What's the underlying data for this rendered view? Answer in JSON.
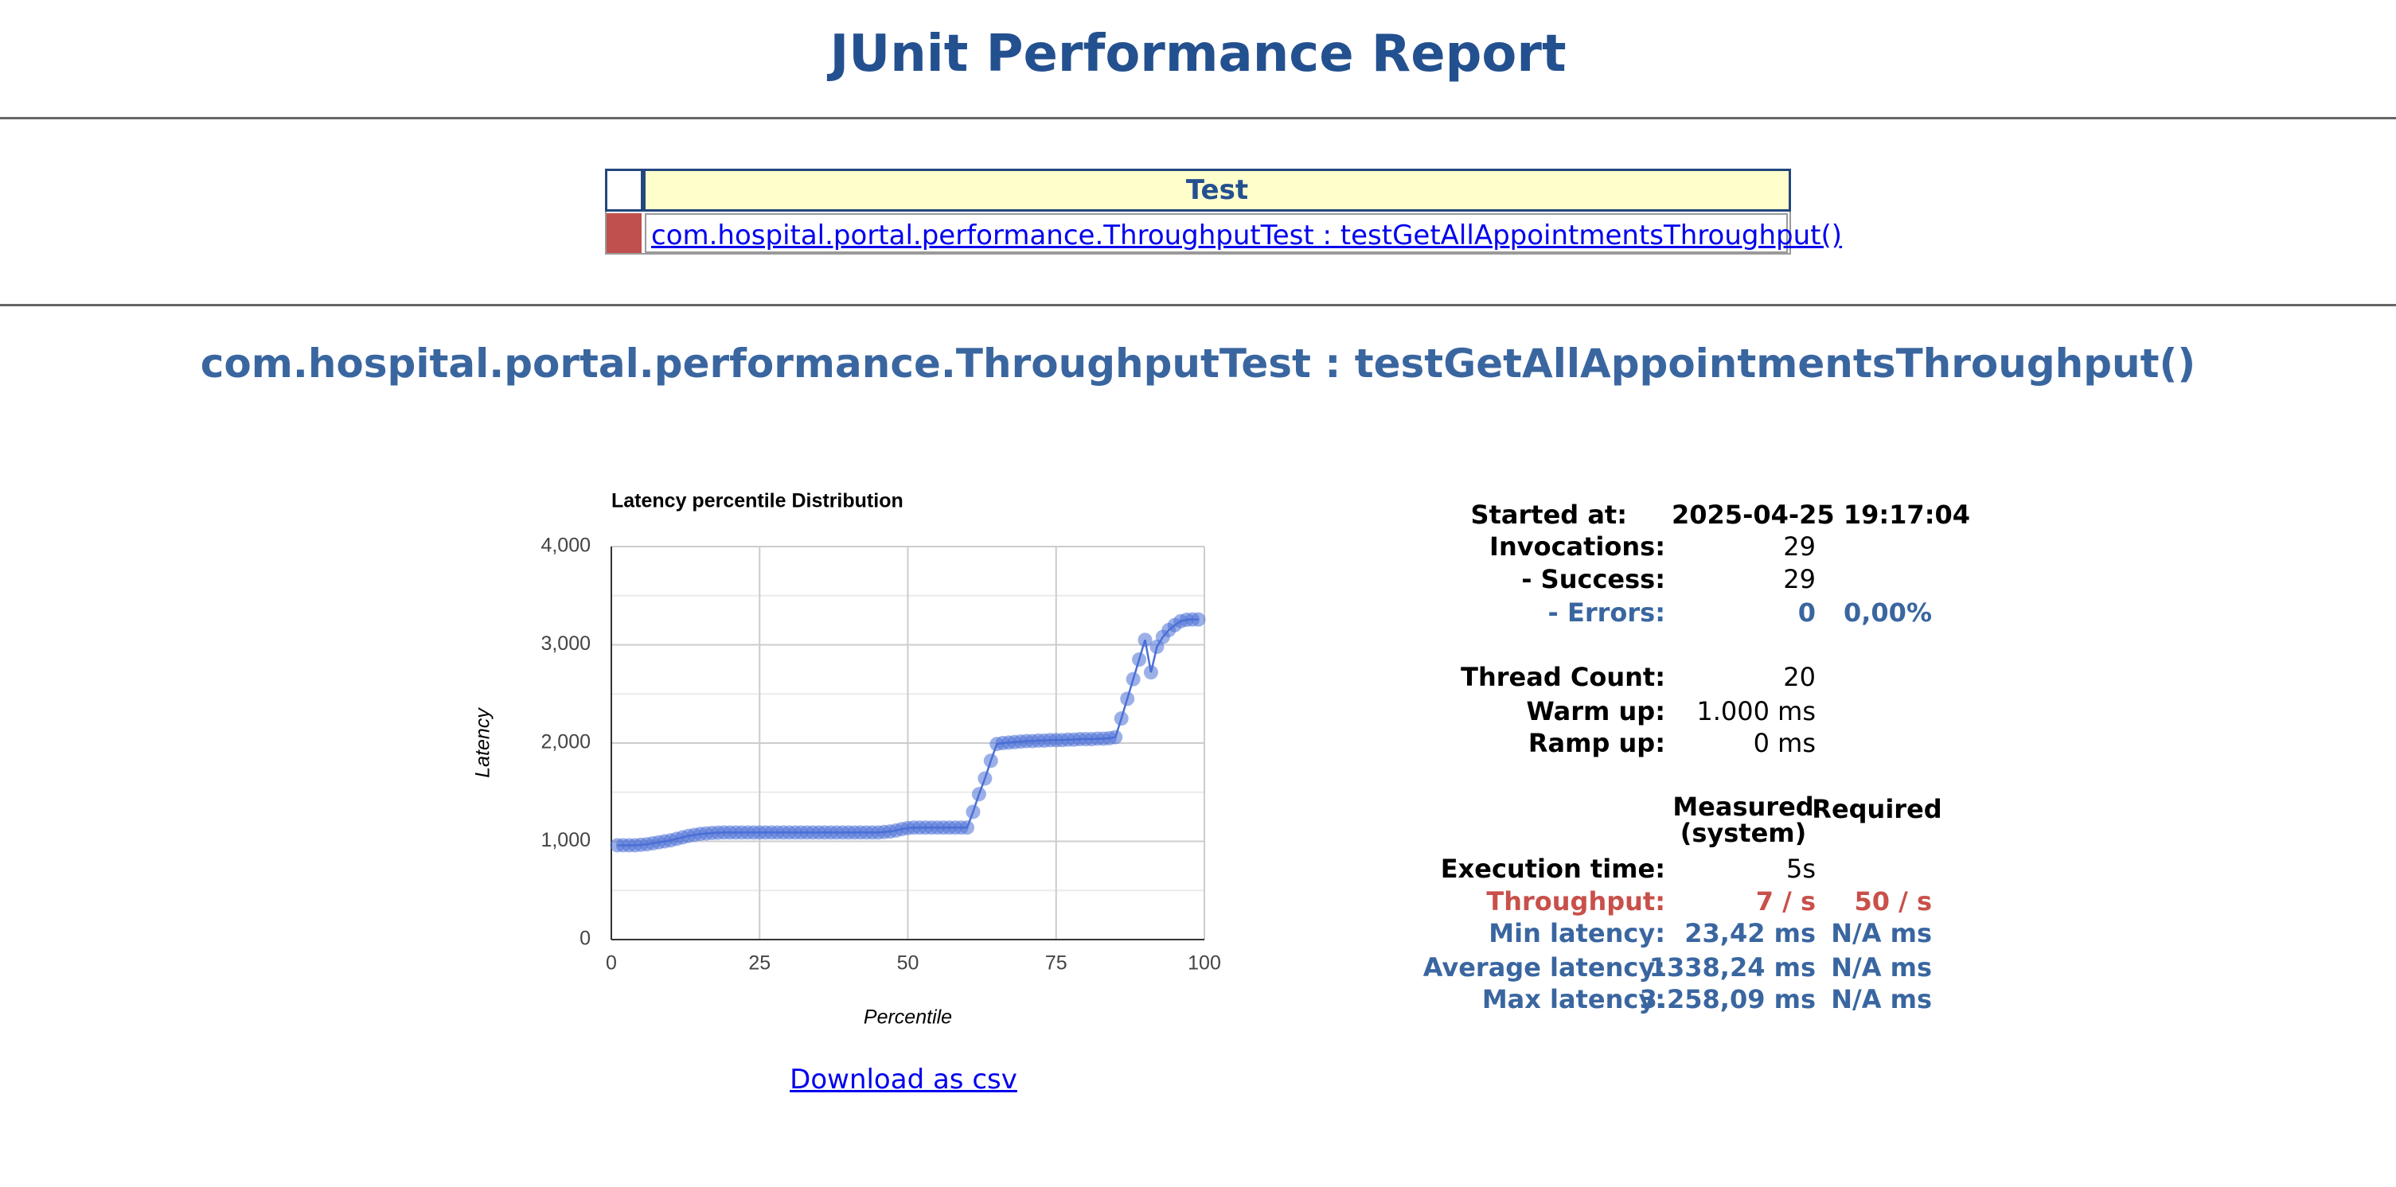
{
  "header": {
    "title": "JUnit Performance Report"
  },
  "tests_table": {
    "header": "Test",
    "rows": [
      {
        "status_color": "#c0504d",
        "name": "com.hospital.portal.performance.ThroughputTest : testGetAllAppointmentsThroughput()"
      }
    ]
  },
  "section_title": "com.hospital.portal.performance.ThroughputTest : testGetAllAppointmentsThroughput()",
  "chart_data": {
    "type": "line",
    "title": "Latency percentile Distribution",
    "x_label": "Percentile",
    "y_label": "Latency",
    "x": [
      1,
      2,
      3,
      4,
      5,
      6,
      7,
      8,
      9,
      10,
      11,
      12,
      13,
      14,
      15,
      16,
      17,
      18,
      19,
      20,
      21,
      22,
      23,
      24,
      25,
      26,
      27,
      28,
      29,
      30,
      31,
      32,
      33,
      34,
      35,
      36,
      37,
      38,
      39,
      40,
      41,
      42,
      43,
      44,
      45,
      46,
      47,
      48,
      49,
      50,
      51,
      52,
      53,
      54,
      55,
      56,
      57,
      58,
      59,
      60,
      61,
      62,
      63,
      64,
      65,
      66,
      67,
      68,
      69,
      70,
      71,
      72,
      73,
      74,
      75,
      76,
      77,
      78,
      79,
      80,
      81,
      82,
      83,
      84,
      85,
      86,
      87,
      88,
      89,
      90,
      91,
      92,
      93,
      94,
      95,
      96,
      97,
      98,
      99
    ],
    "values": [
      960,
      960,
      960,
      960,
      965,
      970,
      980,
      990,
      1000,
      1010,
      1025,
      1040,
      1055,
      1065,
      1075,
      1080,
      1085,
      1088,
      1090,
      1090,
      1090,
      1090,
      1090,
      1090,
      1090,
      1090,
      1090,
      1090,
      1090,
      1090,
      1090,
      1090,
      1090,
      1090,
      1090,
      1090,
      1090,
      1090,
      1090,
      1090,
      1090,
      1090,
      1090,
      1090,
      1090,
      1095,
      1100,
      1110,
      1125,
      1135,
      1140,
      1140,
      1140,
      1140,
      1140,
      1140,
      1140,
      1140,
      1140,
      1140,
      1300,
      1480,
      1640,
      1820,
      1990,
      2000,
      2005,
      2010,
      2015,
      2020,
      2020,
      2025,
      2025,
      2030,
      2030,
      2030,
      2035,
      2035,
      2040,
      2040,
      2040,
      2045,
      2045,
      2050,
      2060,
      2250,
      2450,
      2650,
      2850,
      3050,
      2720,
      2980,
      3080,
      3150,
      3200,
      3240,
      3255,
      3258,
      3258
    ],
    "color": "#4a6fd6",
    "markers": true,
    "xlim": [
      0,
      100
    ],
    "xticks": [
      0,
      25,
      50,
      75,
      100
    ],
    "ylim": [
      0,
      4000
    ],
    "yticks": [
      0,
      {
        "value": 1000,
        "label": "1,000"
      },
      {
        "value": 2000,
        "label": "2,000"
      },
      {
        "value": 3000,
        "label": "3,000"
      },
      {
        "value": 4000,
        "label": "4,000"
      }
    ],
    "minor_yticks": [
      500,
      1500,
      2500,
      3500
    ],
    "grid": true
  },
  "download_link": "Download as csv",
  "run_info": [
    {
      "label": "Started at:",
      "value": "2025-04-25 19:17:04"
    },
    {
      "label": "Invocations:",
      "value": "29"
    },
    {
      "label": "- Success:",
      "value": "29"
    },
    {
      "label": "- Errors:",
      "value": "0",
      "percent": "0,00%"
    },
    {
      "label": "Thread Count:",
      "value": "20"
    },
    {
      "label": "Warm up:",
      "value": "1.000 ms"
    },
    {
      "label": "Ramp up:",
      "value": "0 ms"
    }
  ],
  "results": {
    "columns": [
      "Measured (system)",
      "Required"
    ],
    "rows": [
      {
        "label": "Execution time:",
        "measured": "5s"
      },
      {
        "label": "Throughput:",
        "measured": "7 / s",
        "required": "50 / s"
      },
      {
        "label": "Min latency:",
        "measured": "23,42 ms",
        "required": "N/A ms"
      },
      {
        "label": "Average latency:",
        "measured": "1338,24 ms",
        "required": "N/A ms"
      },
      {
        "label": "Max latency:",
        "measured": "3.258,09 ms",
        "required": "N/A ms"
      }
    ]
  }
}
